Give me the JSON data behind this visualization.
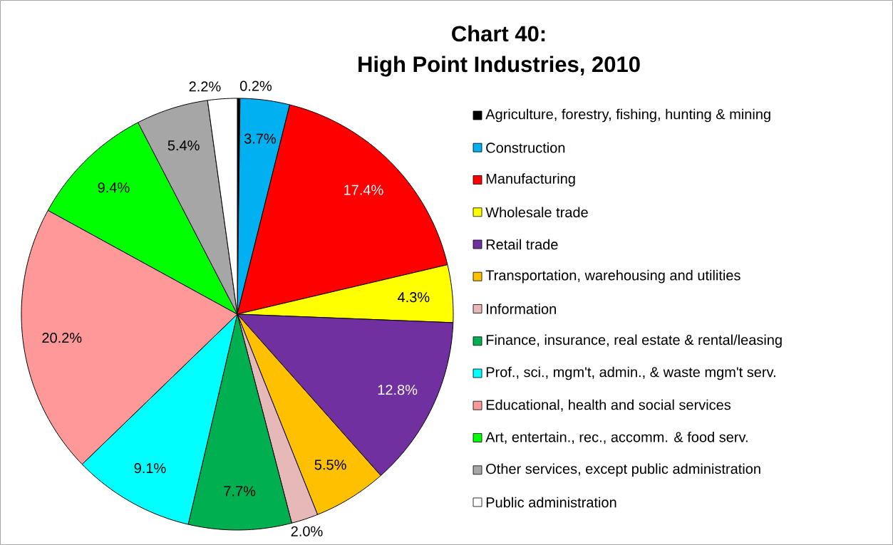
{
  "chart_data": {
    "type": "pie",
    "title": "Chart 40:",
    "subtitle": "High Point Industries, 2010",
    "categories": [
      "Agriculture, forestry, fishing, hunting & mining",
      "Construction",
      "Manufacturing",
      "Wholesale trade",
      "Retail trade",
      "Transportation, warehousing and utilities",
      "Information",
      "Finance, insurance, real estate & rental/leasing",
      "Prof., sci., mgm't, admin., & waste mgm't serv.",
      "Educational, health and social services",
      "Art, entertain., rec., accomm. & food serv.",
      "Other services, except public administration",
      "Public administration"
    ],
    "values": [
      0.2,
      3.7,
      17.4,
      4.3,
      12.8,
      5.5,
      2.0,
      7.7,
      9.1,
      20.2,
      9.4,
      5.4,
      2.2
    ],
    "value_labels": [
      "0.2%",
      "3.7%",
      "17.4%",
      "4.3%",
      "12.8%",
      "5.5%",
      "2.0%",
      "7.7%",
      "9.1%",
      "20.2%",
      "9.4%",
      "5.4%",
      "2.2%"
    ],
    "colors": [
      "#000000",
      "#00b0f0",
      "#ff0000",
      "#ffff00",
      "#7030a0",
      "#ffc000",
      "#e6b9b8",
      "#00b050",
      "#00ffff",
      "#ff9999",
      "#00ff00",
      "#a6a6a6",
      "#ffffff"
    ],
    "legend": "right"
  }
}
